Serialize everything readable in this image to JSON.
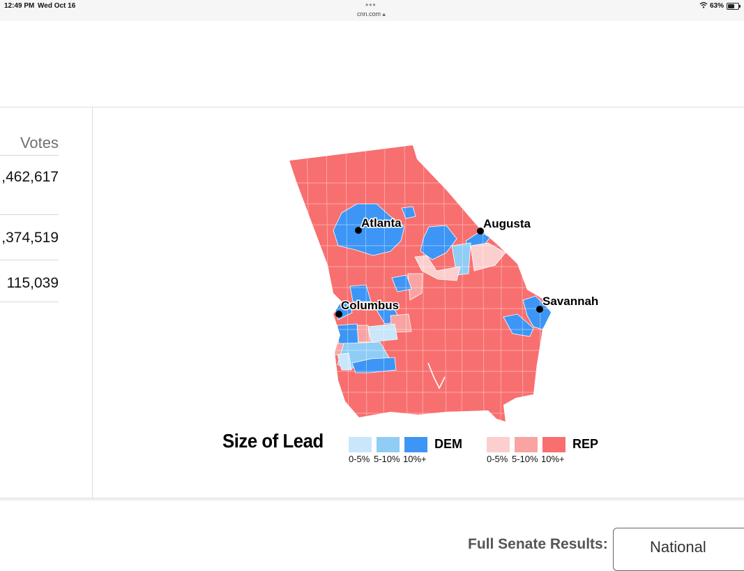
{
  "status_bar": {
    "time": "12:49 PM",
    "date": "Wed Oct 16",
    "url": "cnn.com",
    "battery": "63%"
  },
  "votes": {
    "header": "Votes",
    "values": [
      ",462,617",
      ",374,519",
      "115,039"
    ]
  },
  "map": {
    "cities": [
      {
        "name": "Atlanta"
      },
      {
        "name": "Augusta"
      },
      {
        "name": "Columbus"
      },
      {
        "name": "Savannah"
      }
    ],
    "colors": {
      "dem_0_5": "#c9e6fb",
      "dem_5_10": "#8fcdf5",
      "dem_10_plus": "#3d96f5",
      "rep_0_5": "#fccfcf",
      "rep_5_10": "#f9a4a2",
      "rep_10_plus": "#f86f6f"
    }
  },
  "legend": {
    "title": "Size of Lead",
    "dem": {
      "label": "DEM",
      "ticks": [
        "0-5%",
        "5-10%",
        "10%+"
      ]
    },
    "rep": {
      "label": "REP",
      "ticks": [
        "0-5%",
        "5-10%",
        "10%+"
      ]
    }
  },
  "footer": {
    "senate_label": "Full Senate Results:",
    "national_button": "National"
  }
}
